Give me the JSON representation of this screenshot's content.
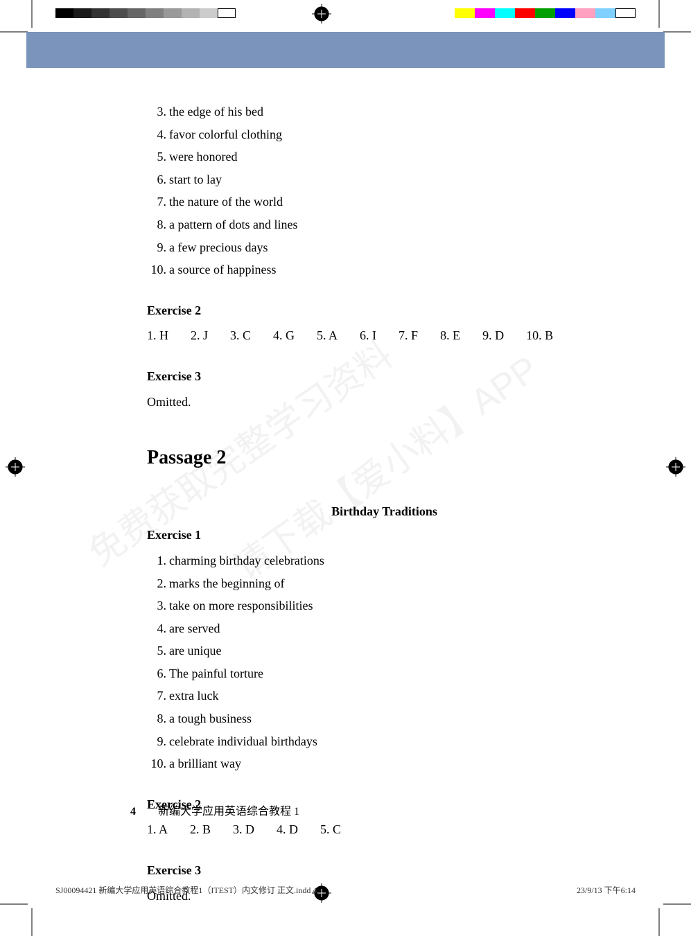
{
  "print_bars": {
    "left_colors": [
      "#000000",
      "#1a1a1a",
      "#333333",
      "#4d4d4d",
      "#666666",
      "#808080",
      "#999999",
      "#b3b3b3",
      "#cccccc",
      "#ffffff"
    ],
    "right_colors": [
      "#ffff00",
      "#ff00ff",
      "#00ffff",
      "#ff0000",
      "#00a000",
      "#0000ff",
      "#ffa0c0",
      "#80d0ff",
      "#ffffff"
    ]
  },
  "header_band_color": "#7a94bb",
  "exercise1_items": [
    {
      "n": "3.",
      "t": "the edge of his bed"
    },
    {
      "n": "4.",
      "t": "favor colorful clothing"
    },
    {
      "n": "5.",
      "t": "were honored"
    },
    {
      "n": "6.",
      "t": "start to lay"
    },
    {
      "n": "7.",
      "t": "the nature of the world"
    },
    {
      "n": "8.",
      "t": "a pattern of dots and lines"
    },
    {
      "n": "9.",
      "t": "a few precious days"
    },
    {
      "n": "10.",
      "t": "a source of happiness"
    }
  ],
  "ex2_heading": "Exercise 2",
  "ex2_answers": [
    {
      "n": "1.",
      "v": "H"
    },
    {
      "n": "2.",
      "v": "J"
    },
    {
      "n": "3.",
      "v": "C"
    },
    {
      "n": "4.",
      "v": "G"
    },
    {
      "n": "5.",
      "v": "A"
    },
    {
      "n": "6.",
      "v": "I"
    },
    {
      "n": "7.",
      "v": "F"
    },
    {
      "n": "8.",
      "v": "E"
    },
    {
      "n": "9.",
      "v": "D"
    },
    {
      "n": "10.",
      "v": "B"
    }
  ],
  "ex3_heading": "Exercise 3",
  "ex3_body": "Omitted.",
  "passage_heading": "Passage 2",
  "passage_title": "Birthday Traditions",
  "p2_ex1_heading": "Exercise 1",
  "p2_ex1_items": [
    {
      "n": "1.",
      "t": "charming birthday celebrations"
    },
    {
      "n": "2.",
      "t": "marks the beginning of"
    },
    {
      "n": "3.",
      "t": "take on more responsibilities"
    },
    {
      "n": "4.",
      "t": "are served"
    },
    {
      "n": "5.",
      "t": "are unique"
    },
    {
      "n": "6.",
      "t": "The painful torture"
    },
    {
      "n": "7.",
      "t": "extra luck"
    },
    {
      "n": "8.",
      "t": "a tough business"
    },
    {
      "n": "9.",
      "t": "celebrate individual birthdays"
    },
    {
      "n": "10.",
      "t": "a brilliant way"
    }
  ],
  "p2_ex2_heading": "Exercise 2",
  "p2_ex2_answers": [
    {
      "n": "1.",
      "v": "A"
    },
    {
      "n": "2.",
      "v": "B"
    },
    {
      "n": "3.",
      "v": "D"
    },
    {
      "n": "4.",
      "v": "D"
    },
    {
      "n": "5.",
      "v": "C"
    }
  ],
  "p2_ex3_heading": "Exercise 3",
  "p2_ex3_body": "Omitted.",
  "page_number": "4",
  "footer_title": "新编大学应用英语综合教程 1",
  "print_footer_left": "SJ00094421 新编大学应用英语综合教程1（ITEST）内文修订 正文.indd   4",
  "print_footer_right": "23/9/13   下午6:14",
  "watermark_lines": [
    "免费获取完整学习资料",
    "请下载【爱小料】APP"
  ]
}
